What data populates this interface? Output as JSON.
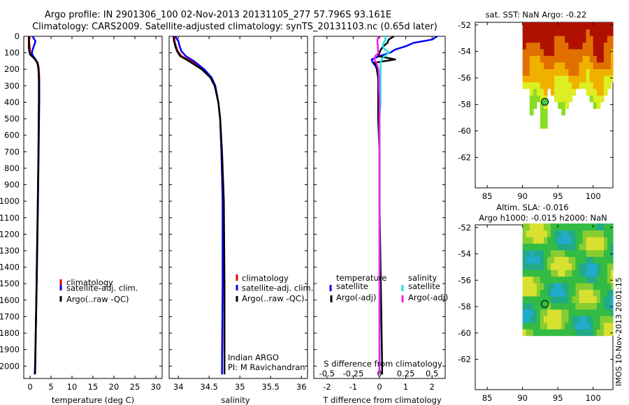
{
  "title_line1": "Argo profile: IN 2901306_100 02-Nov-2013 20131105_277 57.796S 93.161E",
  "title_line2": "Climatology: CARS2009. Satellite-adjusted climatology: synTS_20131103.nc (0.65d later)",
  "colors": {
    "climatology": "#e00000",
    "satellite": "#0000ee",
    "argo": "#000000",
    "sat_salinity": "#22e0e0",
    "argo_salinity": "#ee22ee",
    "float_marker": "#44cc44"
  },
  "depth_ticks": [
    "0",
    "100",
    "200",
    "300",
    "400",
    "500",
    "600",
    "700",
    "800",
    "900",
    "1000",
    "1100",
    "1200",
    "1300",
    "1400",
    "1500",
    "1600",
    "1700",
    "1800",
    "1900",
    "2000"
  ],
  "legend": {
    "climatology": "climatology",
    "satellite_adj": "satellite-adj. clim.",
    "argo": "Argo(..raw -QC)",
    "temperature_head": "temperature",
    "salinity_head": "salinity",
    "satellite": "satellite",
    "argo_adj": "Argo(-adj)"
  },
  "credit": {
    "line1": "Indian ARGO",
    "line2": "PI: M Ravichandran"
  },
  "watermark": "IMOS 10-Nov-2013 20:01:15",
  "chart_data": [
    {
      "type": "line",
      "name": "temperature-panel",
      "xlabel": "temperature (deg C)",
      "ylabel": "",
      "xlim": [
        -1.5,
        31.5
      ],
      "ylim": [
        0,
        2075
      ],
      "xticks": [
        "0",
        "5",
        "10",
        "15",
        "20",
        "25",
        "30"
      ],
      "depth": [
        0,
        30,
        60,
        90,
        110,
        125,
        140,
        160,
        180,
        200,
        250,
        300,
        400,
        500,
        700,
        1000,
        1500,
        2000,
        2050
      ],
      "series": [
        {
          "key": "climatology",
          "values": [
            -0.2,
            -0.2,
            -0.1,
            0.0,
            0.3,
            0.8,
            1.3,
            1.8,
            2.0,
            2.1,
            2.2,
            2.2,
            2.15,
            2.1,
            2.0,
            1.85,
            1.55,
            1.2,
            1.1
          ]
        },
        {
          "key": "satellite",
          "values": [
            0.6,
            1.3,
            0.9,
            0.5,
            0.5,
            0.9,
            1.3,
            1.7,
            1.9,
            2.0,
            2.1,
            2.2,
            2.2,
            2.15,
            2.05,
            1.9,
            1.6,
            1.2,
            1.1
          ]
        },
        {
          "key": "argo",
          "values": [
            -0.3,
            -0.3,
            -0.3,
            -0.2,
            0.0,
            0.6,
            1.2,
            1.7,
            1.9,
            2.0,
            2.1,
            2.1,
            2.1,
            2.05,
            2.0,
            1.85,
            1.55,
            1.25,
            1.2
          ]
        }
      ]
    },
    {
      "type": "line",
      "name": "salinity-panel",
      "xlabel": "salinity",
      "ylabel": "",
      "xlim": [
        33.85,
        36.1
      ],
      "ylim": [
        0,
        2075
      ],
      "xticks": [
        "34",
        "34.5",
        "35",
        "35.5",
        "36"
      ],
      "depth": [
        0,
        30,
        60,
        90,
        120,
        150,
        200,
        250,
        300,
        400,
        500,
        700,
        1000,
        1500,
        2000,
        2050
      ],
      "series": [
        {
          "key": "climatology",
          "values": [
            33.93,
            33.94,
            33.96,
            33.99,
            34.05,
            34.2,
            34.4,
            34.53,
            34.6,
            34.65,
            34.68,
            34.7,
            34.72,
            34.72,
            34.71,
            34.71
          ]
        },
        {
          "key": "satellite",
          "values": [
            33.95,
            34.0,
            34.02,
            34.05,
            34.12,
            34.25,
            34.42,
            34.54,
            34.6,
            34.65,
            34.68,
            34.7,
            34.72,
            34.72,
            34.71,
            34.71
          ]
        },
        {
          "key": "argo",
          "values": [
            33.92,
            33.93,
            33.95,
            33.98,
            34.03,
            34.17,
            34.38,
            34.52,
            34.59,
            34.65,
            34.68,
            34.71,
            34.74,
            34.75,
            34.75,
            34.75
          ]
        }
      ]
    },
    {
      "type": "line",
      "name": "difference-panel",
      "xlabel": "T difference from climatology",
      "x2label": "S difference from climatology",
      "xlim": [
        -2.5,
        2.5
      ],
      "ylim": [
        0,
        2075
      ],
      "xticks": [
        "-2",
        "-1",
        "0",
        "1",
        "2"
      ],
      "x2lim": [
        -0.625,
        0.625
      ],
      "x2ticks": [
        "-0.5",
        "-0.25",
        "0",
        "0.25",
        "0.5"
      ],
      "depth": [
        0,
        20,
        40,
        60,
        80,
        100,
        120,
        140,
        160,
        180,
        200,
        250,
        300,
        400,
        500,
        700,
        1000,
        1500,
        2000,
        2050
      ],
      "series": [
        {
          "key": "satellite",
          "values": [
            2.2,
            2.0,
            1.3,
            1.0,
            0.6,
            0.4,
            0.0,
            -0.3,
            -0.25,
            -0.15,
            -0.1,
            -0.05,
            0.0,
            0.0,
            0.0,
            0.0,
            0.0,
            0.0,
            0.0,
            0.0
          ]
        },
        {
          "key": "argo",
          "values": [
            0.55,
            0.35,
            0.3,
            0.15,
            0.05,
            0.0,
            -0.05,
            0.6,
            -0.2,
            -0.1,
            -0.1,
            -0.05,
            -0.05,
            -0.05,
            -0.05,
            0.0,
            0.0,
            0.05,
            0.1,
            0.1
          ]
        },
        {
          "key": "sat_salinity",
          "values": [
            0.05,
            0.06,
            0.04,
            0.03,
            0.05,
            0.09,
            0.05,
            0.02,
            0.01,
            0.01,
            0.01,
            0.01,
            0.01,
            0.01,
            0.0,
            0.0,
            0.0,
            0.0,
            0.0,
            0.0
          ]
        },
        {
          "key": "argo_salinity",
          "values": [
            -0.01,
            -0.02,
            -0.02,
            -0.015,
            -0.015,
            -0.01,
            -0.04,
            -0.05,
            -0.03,
            -0.02,
            -0.01,
            -0.005,
            -0.005,
            0.0,
            0.0,
            0.0,
            0.0,
            0.0,
            0.0,
            0.0
          ]
        }
      ]
    },
    {
      "type": "heatmap",
      "name": "sst-map",
      "title": "sat. SST: NaN Argo: -0.22",
      "xlim": [
        83.3,
        102.8
      ],
      "ylim": [
        -64.3,
        -51.8
      ],
      "xticks": [
        85,
        90,
        95,
        100
      ],
      "yticks": [
        -52,
        -54,
        -56,
        -58,
        -60,
        -62
      ],
      "data_extent": {
        "lon": [
          90,
          102.8
        ],
        "lat": [
          -60.3,
          -52.1
        ]
      },
      "argo_position": {
        "lon": 93.161,
        "lat": -57.796
      }
    },
    {
      "type": "heatmap",
      "name": "sla-map",
      "title": "Altim. SLA: -0.016",
      "subtitle": "Argo h1000: -0.015 h2000: NaN",
      "xlim": [
        83.3,
        102.8
      ],
      "ylim": [
        -64.3,
        -51.8
      ],
      "xticks": [
        85,
        90,
        95,
        100
      ],
      "yticks": [
        -52,
        -54,
        -56,
        -58,
        -60,
        -62
      ],
      "data_extent": {
        "lon": [
          90,
          102.8
        ],
        "lat": [
          -60.2,
          -52.0
        ]
      },
      "argo_position": {
        "lon": 93.161,
        "lat": -57.796
      }
    }
  ]
}
